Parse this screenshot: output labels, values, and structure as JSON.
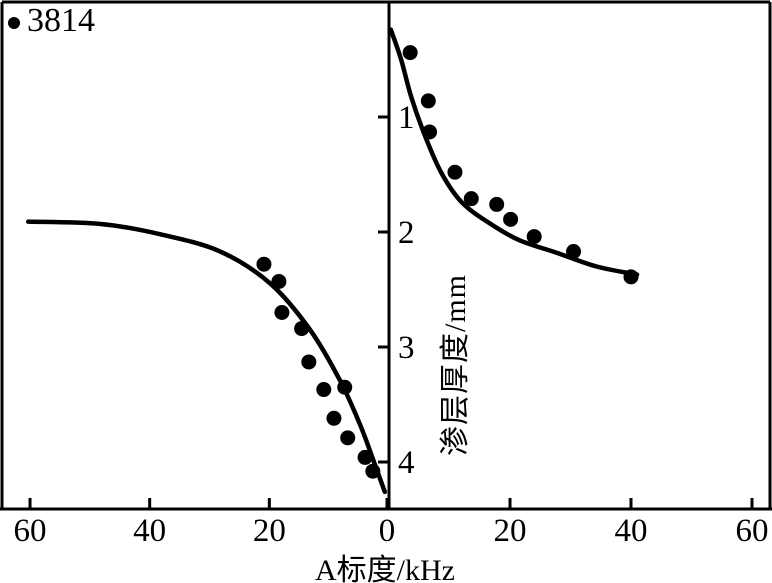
{
  "legend": {
    "marker": "filled-circle",
    "label": "3814"
  },
  "axes": {
    "x_label": "A标度/kHz",
    "y_label": "渗层厚度/mm",
    "x_ticks_left_panel": [
      60,
      40,
      20
    ],
    "x_tick_center": 0,
    "x_ticks_right_panel": [
      20,
      40,
      60
    ],
    "y_ticks": [
      1,
      2,
      3,
      4
    ]
  },
  "colors": {
    "ink": "#000000",
    "background": "#ffffff"
  },
  "chart_data": [
    {
      "type": "scatter",
      "panel": "left",
      "title": "",
      "xlabel": "A标度/kHz",
      "ylabel": "渗层厚度/mm",
      "series_label": "3814",
      "x_axis_note": "reversed: 60 kHz at left edge, 0 at shared center axis",
      "y_axis_note": "inverted: 0 mm at top, depth increases downward",
      "xlim": [
        60,
        0
      ],
      "ylim": [
        0,
        4.4
      ],
      "grid": false,
      "points_x_kHz": [
        20.9,
        18.4,
        17.9,
        14.6,
        13.4,
        10.9,
        7.4,
        9.2,
        6.9,
        4.0,
        2.7
      ],
      "points_y_mm": [
        2.28,
        2.43,
        2.7,
        2.84,
        3.13,
        3.37,
        3.35,
        3.62,
        3.79,
        3.96,
        4.08
      ],
      "fit_curve_x_kHz": [
        60.3,
        48.2,
        38.2,
        28.2,
        19.8,
        13.2,
        8.2,
        4.8,
        2.3,
        0.7
      ],
      "fit_curve_y_mm": [
        1.91,
        1.93,
        2.02,
        2.17,
        2.45,
        2.85,
        3.29,
        3.68,
        4.03,
        4.26
      ]
    },
    {
      "type": "scatter",
      "panel": "right",
      "title": "",
      "xlabel": "A标度/kHz",
      "ylabel": "渗层厚度/mm",
      "series_label": "3814",
      "x_axis_note": "normal: 0 at shared center axis, 60 kHz at right edge",
      "y_axis_note": "inverted: 0 mm at top, depth increases downward",
      "xlim": [
        0,
        60
      ],
      "ylim": [
        0,
        4.4
      ],
      "grid": false,
      "points_x_kHz": [
        3.5,
        6.5,
        6.7,
        10.9,
        13.6,
        17.8,
        20.1,
        24.0,
        30.5,
        40.0
      ],
      "points_y_mm": [
        0.44,
        0.86,
        1.13,
        1.48,
        1.71,
        1.76,
        1.89,
        2.04,
        2.17,
        2.39
      ],
      "fit_curve_x_kHz": [
        0.3,
        2.0,
        3.7,
        6.0,
        8.7,
        12.0,
        16.5,
        21.5,
        27.7,
        34.3,
        41.0
      ],
      "fit_curve_y_mm": [
        0.24,
        0.5,
        0.83,
        1.17,
        1.49,
        1.74,
        1.92,
        2.07,
        2.18,
        2.3,
        2.37
      ]
    }
  ]
}
